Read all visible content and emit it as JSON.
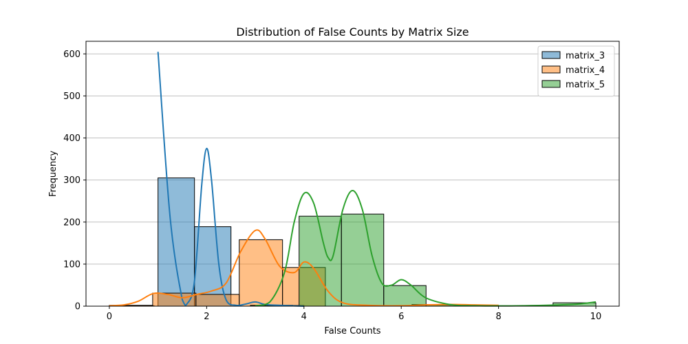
{
  "chart_data": {
    "type": "histogram",
    "title": "Distribution of False Counts by Matrix Size",
    "xlabel": "False Counts",
    "ylabel": "Frequency",
    "xlim": [
      -0.48,
      10.48
    ],
    "ylim": [
      0,
      630
    ],
    "xticks": [
      0,
      2,
      4,
      6,
      8,
      10
    ],
    "yticks": [
      0,
      100,
      200,
      300,
      400,
      500,
      600
    ],
    "grid": "y",
    "legend_position": "top-right",
    "series": [
      {
        "name": "matrix_3",
        "color": "#1f77b4",
        "bins": [
          {
            "x0": 0.0,
            "x1": 0.92,
            "count": 1
          },
          {
            "x0": 1.0,
            "x1": 1.75,
            "count": 305
          },
          {
            "x0": 1.75,
            "x1": 2.5,
            "count": 189
          },
          {
            "x0": 2.5,
            "x1": 3.25,
            "count": 0
          },
          {
            "x0": 3.25,
            "x1": 4.0,
            "count": 2
          }
        ],
        "kde": [
          [
            1.0,
            605
          ],
          [
            1.25,
            210
          ],
          [
            1.5,
            15
          ],
          [
            1.6,
            6
          ],
          [
            1.75,
            60
          ],
          [
            1.9,
            290
          ],
          [
            2.0,
            375
          ],
          [
            2.1,
            300
          ],
          [
            2.25,
            100
          ],
          [
            2.4,
            15
          ],
          [
            2.6,
            2
          ],
          [
            2.8,
            5
          ],
          [
            3.0,
            10
          ],
          [
            3.2,
            4
          ],
          [
            3.5,
            2
          ],
          [
            4.0,
            0
          ]
        ]
      },
      {
        "name": "matrix_4",
        "color": "#ff7f0e",
        "bins": [
          {
            "x0": 0.0,
            "x1": 0.89,
            "count": 2
          },
          {
            "x0": 0.89,
            "x1": 1.78,
            "count": 31
          },
          {
            "x0": 1.78,
            "x1": 2.67,
            "count": 28
          },
          {
            "x0": 2.67,
            "x1": 3.56,
            "count": 158
          },
          {
            "x0": 3.56,
            "x1": 4.44,
            "count": 92
          },
          {
            "x0": 4.44,
            "x1": 5.33,
            "count": 0
          },
          {
            "x0": 5.33,
            "x1": 6.22,
            "count": 0
          },
          {
            "x0": 6.22,
            "x1": 7.11,
            "count": 4
          },
          {
            "x0": 7.11,
            "x1": 8.0,
            "count": 2
          }
        ],
        "kde": [
          [
            0.0,
            1
          ],
          [
            0.3,
            3
          ],
          [
            0.6,
            12
          ],
          [
            0.9,
            30
          ],
          [
            1.2,
            28
          ],
          [
            1.5,
            20
          ],
          [
            1.8,
            28
          ],
          [
            2.1,
            36
          ],
          [
            2.4,
            55
          ],
          [
            2.7,
            130
          ],
          [
            3.0,
            180
          ],
          [
            3.2,
            160
          ],
          [
            3.5,
            95
          ],
          [
            3.8,
            80
          ],
          [
            4.0,
            105
          ],
          [
            4.2,
            90
          ],
          [
            4.5,
            35
          ],
          [
            4.8,
            8
          ],
          [
            5.3,
            2
          ],
          [
            6.0,
            1
          ],
          [
            6.5,
            3
          ],
          [
            7.0,
            4
          ],
          [
            7.5,
            3
          ],
          [
            8.0,
            2
          ]
        ]
      },
      {
        "name": "matrix_5",
        "color": "#2ca02c",
        "bins": [
          {
            "x0": 2.9,
            "x1": 3.77,
            "count": 2
          },
          {
            "x0": 3.9,
            "x1": 4.77,
            "count": 214
          },
          {
            "x0": 4.77,
            "x1": 5.64,
            "count": 219
          },
          {
            "x0": 5.64,
            "x1": 6.51,
            "count": 49
          },
          {
            "x0": 6.51,
            "x1": 7.38,
            "count": 3
          },
          {
            "x0": 7.38,
            "x1": 8.25,
            "count": 1
          },
          {
            "x0": 8.25,
            "x1": 9.12,
            "count": 0
          },
          {
            "x0": 9.12,
            "x1": 10.0,
            "count": 8
          }
        ],
        "kde": [
          [
            3.0,
            1
          ],
          [
            3.3,
            10
          ],
          [
            3.6,
            80
          ],
          [
            3.8,
            200
          ],
          [
            4.0,
            268
          ],
          [
            4.2,
            245
          ],
          [
            4.4,
            150
          ],
          [
            4.5,
            115
          ],
          [
            4.6,
            120
          ],
          [
            4.8,
            230
          ],
          [
            5.0,
            275
          ],
          [
            5.2,
            230
          ],
          [
            5.4,
            120
          ],
          [
            5.6,
            55
          ],
          [
            5.8,
            50
          ],
          [
            6.0,
            63
          ],
          [
            6.2,
            50
          ],
          [
            6.5,
            20
          ],
          [
            7.0,
            4
          ],
          [
            7.5,
            1
          ],
          [
            8.5,
            1
          ],
          [
            9.5,
            4
          ],
          [
            10.0,
            10
          ]
        ]
      }
    ]
  }
}
